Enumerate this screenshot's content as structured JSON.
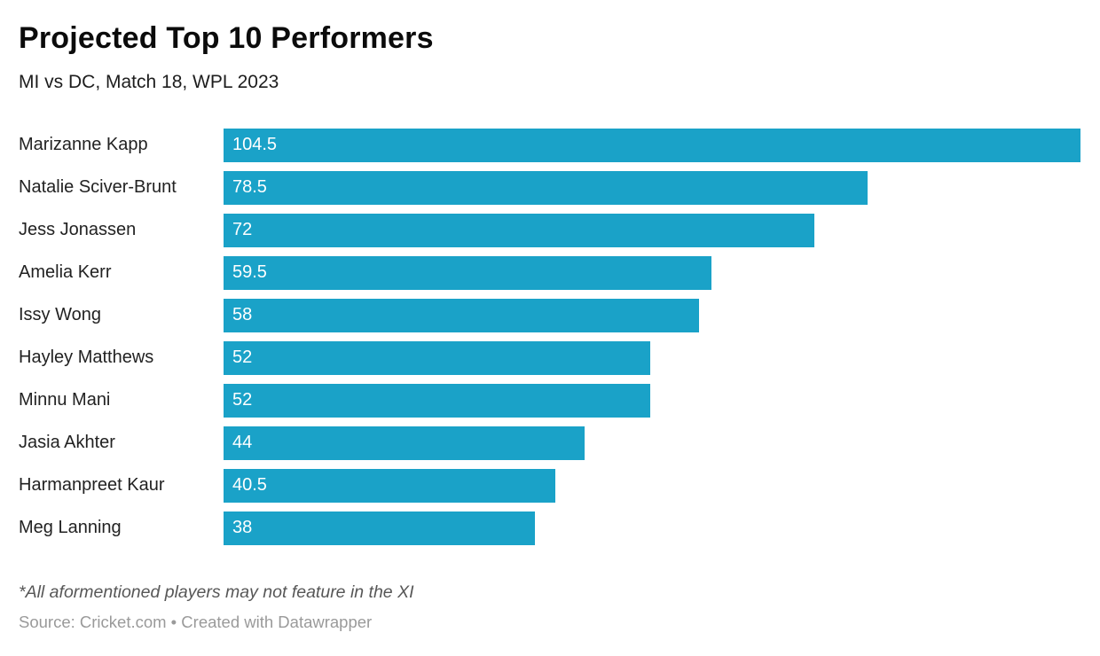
{
  "header": {
    "title": "Projected Top 10 Performers",
    "subtitle": "MI vs DC, Match 18, WPL 2023"
  },
  "chart_data": {
    "type": "bar",
    "orientation": "horizontal",
    "title": "Projected Top 10 Performers",
    "subtitle": "MI vs DC, Match 18, WPL 2023",
    "categories": [
      "Marizanne Kapp",
      "Natalie Sciver-Brunt",
      "Jess Jonassen",
      "Amelia Kerr",
      "Issy Wong",
      "Hayley Matthews",
      "Minnu Mani",
      "Jasia Akhter",
      "Harmanpreet Kaur",
      "Meg Lanning"
    ],
    "values": [
      104.5,
      78.5,
      72,
      59.5,
      58,
      52,
      52,
      44,
      40.5,
      38
    ],
    "xlim": [
      0,
      104.5
    ],
    "value_labels_shown": true,
    "value_label_position": "inside-start",
    "grid": false,
    "legend": false,
    "axis_ticks_shown": false,
    "colors": {
      "bar": "#1aa2c8",
      "value_label": "#ffffff",
      "category_label": "#222222"
    }
  },
  "footer": {
    "footnote": "*All aformentioned players may not feature in the XI",
    "source": "Source: Cricket.com • Created with Datawrapper"
  }
}
